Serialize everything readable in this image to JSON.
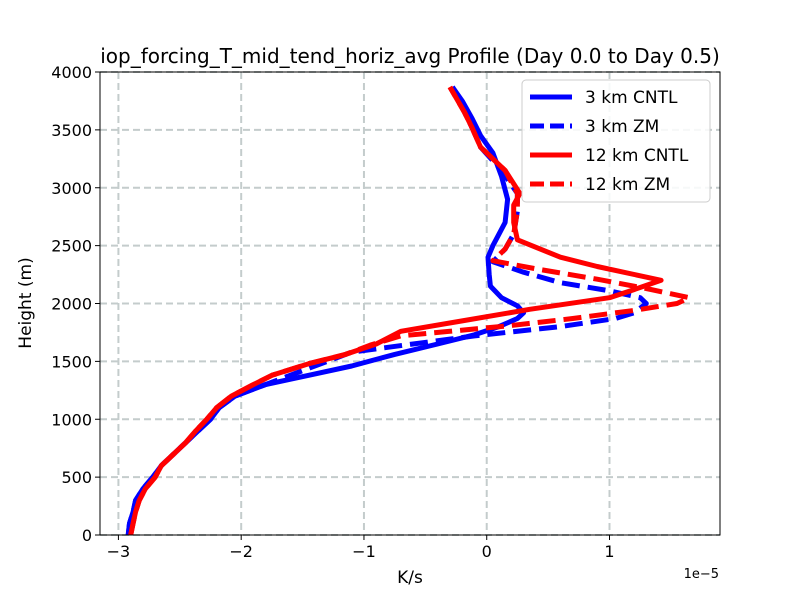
{
  "chart_data": {
    "type": "line",
    "title": "iop_forcing_T_mid_tend_horiz_avg Profile (Day 0.0 to Day 0.5)",
    "xlabel": "K/s",
    "ylabel": "Height (m)",
    "x_offset_label": "1e−5",
    "xlim": [
      -3.15,
      1.9
    ],
    "ylim": [
      0,
      4000
    ],
    "xticks": [
      -3,
      -2,
      -1,
      0,
      1
    ],
    "xtick_labels": [
      "−3",
      "−2",
      "−1",
      "0",
      "1"
    ],
    "yticks": [
      0,
      500,
      1000,
      1500,
      2000,
      2500,
      3000,
      3500,
      4000
    ],
    "ytick_labels": [
      "0",
      "500",
      "1000",
      "1500",
      "2000",
      "2500",
      "3000",
      "3500",
      "4000"
    ],
    "grid": true,
    "legend_position": "top-right",
    "x_units_note": "x values are in units of 1e-5 K/s",
    "series": [
      {
        "name": "3 km CNTL",
        "color": "#0000ff",
        "style": "solid",
        "points": [
          [
            -2.92,
            0
          ],
          [
            -2.91,
            100
          ],
          [
            -2.88,
            200
          ],
          [
            -2.86,
            300
          ],
          [
            -2.8,
            400
          ],
          [
            -2.72,
            500
          ],
          [
            -2.65,
            600
          ],
          [
            -2.55,
            700
          ],
          [
            -2.45,
            800
          ],
          [
            -2.35,
            900
          ],
          [
            -2.25,
            1000
          ],
          [
            -2.18,
            1100
          ],
          [
            -2.05,
            1200
          ],
          [
            -1.8,
            1300
          ],
          [
            -1.45,
            1380
          ],
          [
            -1.1,
            1460
          ],
          [
            -0.75,
            1560
          ],
          [
            -0.4,
            1650
          ],
          [
            -0.1,
            1730
          ],
          [
            0.1,
            1800
          ],
          [
            0.25,
            1870
          ],
          [
            0.3,
            1920
          ],
          [
            0.25,
            1980
          ],
          [
            0.12,
            2050
          ],
          [
            0.03,
            2150
          ],
          [
            0.02,
            2250
          ],
          [
            0.01,
            2400
          ],
          [
            0.05,
            2500
          ],
          [
            0.1,
            2600
          ],
          [
            0.15,
            2700
          ],
          [
            0.17,
            2900
          ],
          [
            0.12,
            3100
          ],
          [
            0.05,
            3300
          ],
          [
            -0.05,
            3450
          ],
          [
            -0.12,
            3600
          ],
          [
            -0.2,
            3750
          ],
          [
            -0.28,
            3870
          ]
        ]
      },
      {
        "name": "3 km ZM",
        "color": "#0000ff",
        "style": "dashed",
        "points": [
          [
            -2.92,
            0
          ],
          [
            -2.91,
            100
          ],
          [
            -2.88,
            200
          ],
          [
            -2.86,
            300
          ],
          [
            -2.8,
            400
          ],
          [
            -2.72,
            500
          ],
          [
            -2.65,
            600
          ],
          [
            -2.55,
            700
          ],
          [
            -2.45,
            800
          ],
          [
            -2.35,
            900
          ],
          [
            -2.25,
            1000
          ],
          [
            -2.18,
            1100
          ],
          [
            -2.05,
            1200
          ],
          [
            -1.8,
            1300
          ],
          [
            -1.55,
            1400
          ],
          [
            -1.3,
            1500
          ],
          [
            -1.1,
            1580
          ],
          [
            -0.6,
            1650
          ],
          [
            -0.1,
            1720
          ],
          [
            0.6,
            1800
          ],
          [
            1.05,
            1870
          ],
          [
            1.2,
            1920
          ],
          [
            1.3,
            2000
          ],
          [
            1.25,
            2050
          ],
          [
            1.0,
            2110
          ],
          [
            0.6,
            2180
          ],
          [
            0.3,
            2270
          ],
          [
            0.05,
            2360
          ],
          [
            0.15,
            2470
          ],
          [
            0.22,
            2600
          ],
          [
            0.25,
            2800
          ],
          [
            0.25,
            2950
          ],
          [
            0.12,
            3150
          ],
          [
            -0.05,
            3350
          ],
          [
            -0.12,
            3520
          ],
          [
            -0.18,
            3650
          ],
          [
            -0.28,
            3870
          ]
        ]
      },
      {
        "name": "12 km CNTL",
        "color": "#ff0000",
        "style": "solid",
        "points": [
          [
            -2.9,
            0
          ],
          [
            -2.88,
            100
          ],
          [
            -2.86,
            200
          ],
          [
            -2.83,
            300
          ],
          [
            -2.78,
            400
          ],
          [
            -2.7,
            500
          ],
          [
            -2.65,
            600
          ],
          [
            -2.55,
            700
          ],
          [
            -2.45,
            800
          ],
          [
            -2.37,
            900
          ],
          [
            -2.28,
            1000
          ],
          [
            -2.2,
            1100
          ],
          [
            -2.08,
            1200
          ],
          [
            -1.9,
            1300
          ],
          [
            -1.75,
            1380
          ],
          [
            -1.45,
            1480
          ],
          [
            -1.15,
            1560
          ],
          [
            -0.9,
            1650
          ],
          [
            -0.7,
            1760
          ],
          [
            -0.2,
            1850
          ],
          [
            0.35,
            1950
          ],
          [
            1.0,
            2050
          ],
          [
            1.2,
            2120
          ],
          [
            1.42,
            2200
          ],
          [
            0.9,
            2320
          ],
          [
            0.6,
            2400
          ],
          [
            0.25,
            2550
          ],
          [
            0.22,
            2700
          ],
          [
            0.22,
            2850
          ],
          [
            0.27,
            2950
          ],
          [
            0.15,
            3150
          ],
          [
            -0.05,
            3350
          ],
          [
            -0.12,
            3520
          ],
          [
            -0.18,
            3650
          ],
          [
            -0.3,
            3870
          ]
        ]
      },
      {
        "name": "12 km ZM",
        "color": "#ff0000",
        "style": "dashed",
        "points": [
          [
            -2.9,
            0
          ],
          [
            -2.88,
            100
          ],
          [
            -2.86,
            200
          ],
          [
            -2.83,
            300
          ],
          [
            -2.78,
            400
          ],
          [
            -2.7,
            500
          ],
          [
            -2.65,
            600
          ],
          [
            -2.55,
            700
          ],
          [
            -2.45,
            800
          ],
          [
            -2.37,
            900
          ],
          [
            -2.28,
            1000
          ],
          [
            -2.2,
            1100
          ],
          [
            -2.08,
            1200
          ],
          [
            -1.9,
            1300
          ],
          [
            -1.75,
            1380
          ],
          [
            -1.45,
            1480
          ],
          [
            -1.15,
            1560
          ],
          [
            -0.95,
            1640
          ],
          [
            -0.7,
            1720
          ],
          [
            -0.3,
            1760
          ],
          [
            0.2,
            1810
          ],
          [
            0.7,
            1870
          ],
          [
            1.2,
            1940
          ],
          [
            1.55,
            2000
          ],
          [
            1.65,
            2050
          ],
          [
            1.3,
            2130
          ],
          [
            0.9,
            2210
          ],
          [
            0.4,
            2300
          ],
          [
            0.05,
            2370
          ],
          [
            0.15,
            2470
          ],
          [
            0.22,
            2600
          ],
          [
            0.25,
            2800
          ],
          [
            0.25,
            2950
          ],
          [
            0.15,
            3150
          ],
          [
            -0.05,
            3350
          ],
          [
            -0.12,
            3520
          ],
          [
            -0.18,
            3650
          ],
          [
            -0.3,
            3870
          ]
        ]
      }
    ]
  }
}
